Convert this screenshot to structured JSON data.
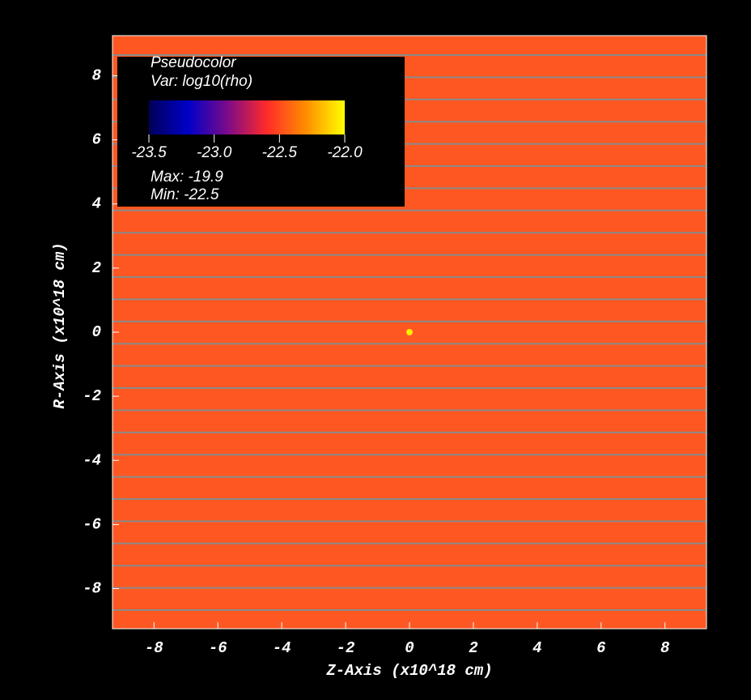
{
  "chart_data": {
    "type": "pseudocolor",
    "xlabel": "Z-Axis (x10^18 cm)",
    "ylabel": "R-Axis (x10^18 cm)",
    "xlim": [
      -9.3,
      9.3
    ],
    "ylim": [
      -9.25,
      9.25
    ],
    "xticks": [
      -8,
      -6,
      -4,
      -2,
      0,
      2,
      4,
      6,
      8
    ],
    "yticks": [
      -8,
      -6,
      -4,
      -2,
      0,
      2,
      4,
      6,
      8
    ],
    "background_color": "#ff5722",
    "x": [
      0
    ],
    "y": [
      0
    ],
    "color": "#ffee00",
    "legend": {
      "title": "Pseudocolor",
      "variable": "Var: log10(rho)",
      "colormap": [
        "#00005a",
        "#0000c8",
        "#7a0a8a",
        "#ff2a2a",
        "#ff8c00",
        "#ffff00"
      ],
      "clim": [
        -23.5,
        -22.0
      ],
      "ticks": [
        {
          "value": -23.5,
          "label": "-23.5"
        },
        {
          "value": -23.0,
          "label": "-23.0"
        },
        {
          "value": -22.5,
          "label": "-22.5"
        },
        {
          "value": -22.0,
          "label": "-22.0"
        }
      ],
      "max": "Max: -19.9",
      "min": "Min: -22.5"
    }
  }
}
